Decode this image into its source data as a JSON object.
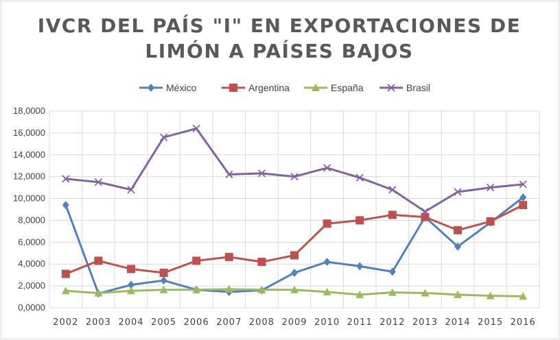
{
  "chart_data": {
    "type": "line",
    "title_lines": [
      "IVCR DEL PAÍS \"I\" EN EXPORTACIONES DE",
      "LIMÓN A PAÍSES BAJOS"
    ],
    "xlabel": "",
    "ylabel": "",
    "categories": [
      "2002",
      "2003",
      "2004",
      "2005",
      "2006",
      "2007",
      "2008",
      "2009",
      "2010",
      "2011",
      "2012",
      "2013",
      "2014",
      "2015",
      "2016"
    ],
    "ylim": [
      0,
      18
    ],
    "yticks": [
      0,
      2,
      4,
      6,
      8,
      10,
      12,
      14,
      16,
      18
    ],
    "ytick_labels": [
      "0,0000",
      "2,0000",
      "4,0000",
      "6,0000",
      "8,0000",
      "10,0000",
      "12,0000",
      "14,0000",
      "16,0000",
      "18,0000"
    ],
    "grid": true,
    "legend_position": "top",
    "series": [
      {
        "name": "México",
        "color": "#4f81bd",
        "marker": "diamond",
        "values": [
          9.4,
          1.3,
          2.1,
          2.5,
          1.65,
          1.45,
          1.6,
          3.2,
          4.2,
          3.8,
          3.3,
          8.3,
          5.6,
          7.8,
          10.1
        ]
      },
      {
        "name": "Argentina",
        "color": "#c0504d",
        "marker": "square",
        "values": [
          3.1,
          4.3,
          3.55,
          3.2,
          4.3,
          4.65,
          4.2,
          4.8,
          7.7,
          8.0,
          8.5,
          8.3,
          7.1,
          7.9,
          9.4
        ]
      },
      {
        "name": "España",
        "color": "#9bbb59",
        "marker": "triangle",
        "values": [
          1.55,
          1.35,
          1.55,
          1.65,
          1.65,
          1.7,
          1.65,
          1.65,
          1.45,
          1.2,
          1.4,
          1.35,
          1.2,
          1.1,
          1.05
        ]
      },
      {
        "name": "Brasil",
        "color": "#8064a2",
        "marker": "x",
        "values": [
          11.8,
          11.5,
          10.8,
          15.6,
          16.4,
          12.2,
          12.3,
          12.0,
          12.8,
          11.9,
          10.8,
          8.8,
          10.6,
          11.0,
          11.3
        ]
      }
    ]
  }
}
